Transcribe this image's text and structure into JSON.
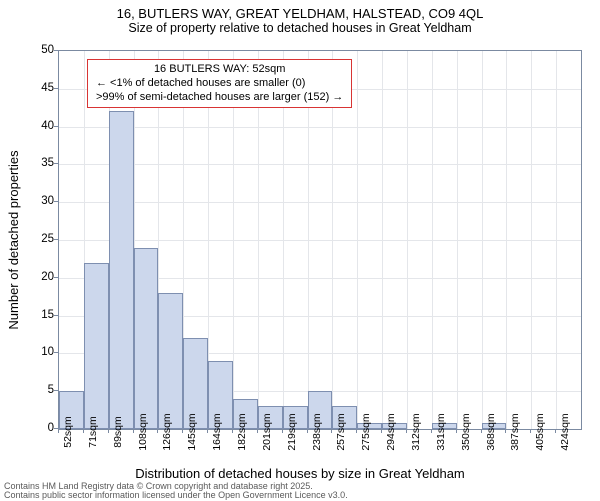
{
  "title": {
    "line1": "16, BUTLERS WAY, GREAT YELDHAM, HALSTEAD, CO9 4QL",
    "line2": "Size of property relative to detached houses in Great Yeldham"
  },
  "chart": {
    "type": "histogram",
    "ylim": [
      0,
      50
    ],
    "ytick_step": 5,
    "y_ticks": [
      0,
      5,
      10,
      15,
      20,
      25,
      30,
      35,
      40,
      45,
      50
    ],
    "x_labels": [
      "52sqm",
      "71sqm",
      "89sqm",
      "108sqm",
      "126sqm",
      "145sqm",
      "164sqm",
      "182sqm",
      "201sqm",
      "219sqm",
      "238sqm",
      "257sqm",
      "275sqm",
      "294sqm",
      "312sqm",
      "331sqm",
      "350sqm",
      "368sqm",
      "387sqm",
      "405sqm",
      "424sqm"
    ],
    "values": [
      5,
      22,
      42,
      24,
      18,
      12,
      9,
      4,
      3,
      3,
      5,
      3,
      0.8,
      0.8,
      0,
      0.8,
      0,
      0.8,
      0,
      0,
      0
    ],
    "bar_color": "#ccd7ec",
    "bar_border_color": "#7e8fb0",
    "grid_color": "#e4e6ea",
    "axis_color": "#7b8aa1",
    "background_color": "#ffffff",
    "ylabel": "Number of detached properties",
    "xlabel": "Distribution of detached houses by size in Great Yeldham",
    "label_fontsize": 13,
    "tick_fontsize": 11
  },
  "info_box": {
    "line1": "16 BUTLERS WAY: 52sqm",
    "line2": "← <1% of detached houses are smaller (0)",
    "line3": ">99% of semi-detached houses are larger (152) →",
    "border_color": "#d83434"
  },
  "footer": {
    "line1": "Contains HM Land Registry data © Crown copyright and database right 2025.",
    "line2": "Contains public sector information licensed under the Open Government Licence v3.0."
  }
}
